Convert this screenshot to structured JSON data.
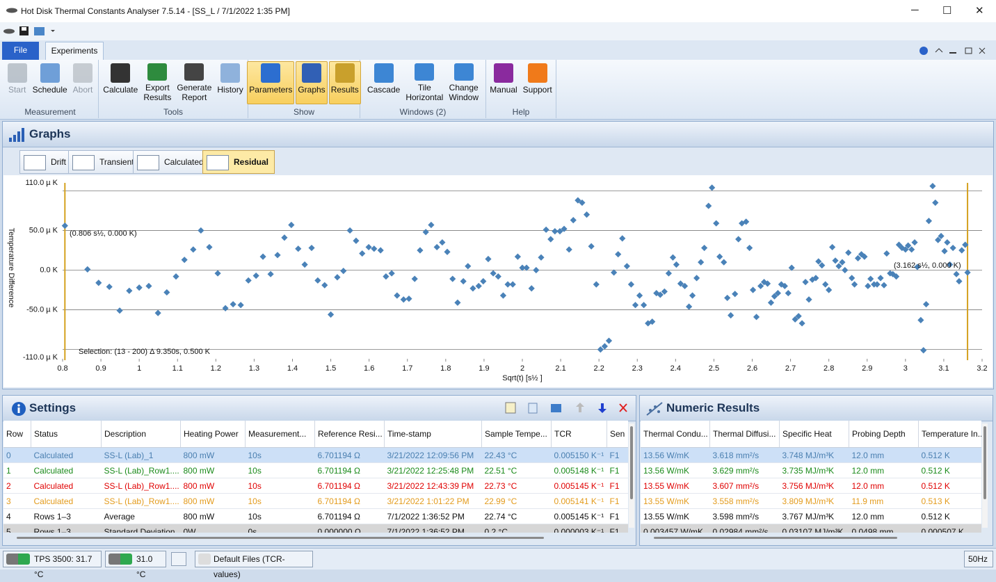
{
  "window": {
    "title": "Hot Disk Thermal Constants Analyser 7.5.14 - [SS_L  /  7/1/2022 1:35 PM]"
  },
  "ribbon": {
    "tabs": [
      "File",
      "Experiments"
    ],
    "groups": [
      {
        "label": "Measurement",
        "buttons": [
          {
            "label": "Start",
            "disabled": true
          },
          {
            "label": "Schedule"
          },
          {
            "label": "Abort",
            "disabled": true
          }
        ]
      },
      {
        "label": "Tools",
        "buttons": [
          {
            "label": "Calculate"
          },
          {
            "label": "Export Results"
          },
          {
            "label": "Generate Report"
          },
          {
            "label": "History"
          }
        ]
      },
      {
        "label": "Show",
        "buttons": [
          {
            "label": "Parameters",
            "active": true
          },
          {
            "label": "Graphs",
            "active": true
          },
          {
            "label": "Results",
            "active": true
          }
        ]
      },
      {
        "label": "Windows (2)",
        "buttons": [
          {
            "label": "Cascade"
          },
          {
            "label": "Tile Horizontal"
          },
          {
            "label": "Change Window"
          }
        ]
      },
      {
        "label": "Help",
        "buttons": [
          {
            "label": "Manual"
          },
          {
            "label": "Support"
          }
        ]
      }
    ]
  },
  "graphs": {
    "title": "Graphs",
    "tabs": [
      "Drift",
      "Transient",
      "Calculated",
      "Residual"
    ],
    "active": 3
  },
  "chart_data": {
    "type": "scatter",
    "xlabel": "Sqrt(t) [s½ ]",
    "ylabel": "Temperature Difference",
    "xlim": [
      0.8,
      3.2
    ],
    "xticks": [
      0.8,
      0.9,
      1,
      1.1,
      1.2,
      1.3,
      1.4,
      1.5,
      1.6,
      1.7,
      1.8,
      1.9,
      2,
      2.1,
      2.2,
      2.3,
      2.4,
      2.5,
      2.6,
      2.7,
      2.8,
      2.9,
      3,
      3.1,
      3.2
    ],
    "ylim": [
      -110,
      110
    ],
    "yticks": [
      {
        "value": 110,
        "label": "110.0 µ K"
      },
      {
        "value": 50,
        "label": "50.0 µ K"
      },
      {
        "value": 0,
        "label": "0.0 K"
      },
      {
        "value": -50,
        "label": "-50.0 µ K"
      },
      {
        "value": -110,
        "label": "-110.0 µ K"
      }
    ],
    "grid": true,
    "ygrid": [
      100,
      50,
      0,
      -50,
      -100
    ],
    "color": "#4a82b8",
    "cursors": [
      0.806,
      3.162
    ],
    "cursor_color": "#d4a11e",
    "annotations": [
      "(0.806 s½, 0.000 K)",
      "(3.162 s½, 0.000 K)",
      "Selection: (13 - 200) Δ 9.350s, 0.500 K"
    ],
    "x": [
      0.806,
      0.865,
      0.894,
      0.922,
      0.949,
      0.974,
      1.0,
      1.025,
      1.049,
      1.072,
      1.096,
      1.118,
      1.141,
      1.161,
      1.183,
      1.205,
      1.225,
      1.245,
      1.265,
      1.285,
      1.305,
      1.323,
      1.343,
      1.361,
      1.379,
      1.397,
      1.415,
      1.432,
      1.45,
      1.466,
      1.484,
      1.5,
      1.517,
      1.533,
      1.55,
      1.566,
      1.582,
      1.599,
      1.613,
      1.63,
      1.644,
      1.659,
      1.673,
      1.69,
      1.704,
      1.719,
      1.733,
      1.748,
      1.762,
      1.777,
      1.791,
      1.804,
      1.818,
      1.831,
      1.846,
      1.858,
      1.871,
      1.886,
      1.898,
      1.911,
      1.924,
      1.937,
      1.95,
      1.962,
      1.975,
      1.988,
      2.0,
      2.011,
      2.024,
      2.036,
      2.049,
      2.062,
      2.074,
      2.085,
      2.098,
      2.109,
      2.122,
      2.133,
      2.145,
      2.156,
      2.168,
      2.18,
      2.193,
      2.204,
      2.215,
      2.226,
      2.239,
      2.25,
      2.261,
      2.273,
      2.284,
      2.295,
      2.306,
      2.317,
      2.328,
      2.339,
      2.35,
      2.36,
      2.371,
      2.382,
      2.393,
      2.402,
      2.413,
      2.424,
      2.435,
      2.444,
      2.455,
      2.466,
      2.475,
      2.486,
      2.495,
      2.506,
      2.515,
      2.526,
      2.535,
      2.544,
      2.555,
      2.564,
      2.573,
      2.584,
      2.593,
      2.602,
      2.611,
      2.622,
      2.631,
      2.64,
      2.649,
      2.658,
      2.667,
      2.676,
      2.685,
      2.694,
      2.703,
      2.712,
      2.721,
      2.73,
      2.739,
      2.748,
      2.757,
      2.766,
      2.773,
      2.782,
      2.791,
      2.8,
      2.809,
      2.817,
      2.826,
      2.835,
      2.842,
      2.851,
      2.86,
      2.867,
      2.876,
      2.885,
      2.893,
      2.902,
      2.909,
      2.918,
      2.926,
      2.935,
      2.944,
      2.951,
      2.96,
      2.967,
      2.976,
      2.983,
      2.991,
      3.0,
      3.007,
      3.016,
      3.024,
      3.031,
      3.04,
      3.047,
      3.054,
      3.061,
      3.071,
      3.078,
      3.085,
      3.093,
      3.102,
      3.109,
      3.116,
      3.124,
      3.133,
      3.14,
      3.147,
      3.156,
      3.162
    ],
    "values": [
      56,
      1,
      -16,
      -21,
      -51,
      -26,
      -22,
      -20,
      -54,
      -28,
      -8,
      13,
      26,
      50,
      29,
      -4,
      -48,
      -43,
      -44,
      -13,
      -7,
      17,
      -5,
      19,
      41,
      57,
      27,
      7,
      28,
      -13,
      -19,
      -56,
      -9,
      -1,
      50,
      37,
      21,
      29,
      27,
      25,
      -8,
      -4,
      -32,
      -37,
      -36,
      -11,
      25,
      48,
      57,
      29,
      35,
      23,
      -11,
      -41,
      -14,
      5,
      -23,
      -20,
      -14,
      14,
      -4,
      -8,
      -32,
      -18,
      -18,
      17,
      3,
      3,
      -23,
      0,
      16,
      51,
      39,
      49,
      49,
      52,
      26,
      63,
      88,
      85,
      70,
      30,
      -18,
      -100,
      -96,
      -89,
      -3,
      20,
      40,
      5,
      -18,
      -44,
      -32,
      -44,
      -67,
      -65,
      -29,
      -31,
      -27,
      -4,
      16,
      7,
      -17,
      -20,
      -46,
      -32,
      -10,
      10,
      28,
      81,
      104,
      59,
      17,
      10,
      -35,
      -57,
      -30,
      39,
      59,
      61,
      28,
      -25,
      -59,
      -20,
      -15,
      -17,
      -41,
      -33,
      -29,
      -18,
      -20,
      -29,
      3,
      -62,
      -58,
      -67,
      -15,
      -37,
      -12,
      -10,
      11,
      6,
      -18,
      -25,
      29,
      12,
      5,
      10,
      0,
      22,
      -10,
      -18,
      15,
      20,
      17,
      -20,
      -11,
      -18,
      -18,
      -10,
      -19,
      21,
      -4,
      -5,
      -8,
      32,
      28,
      26,
      31,
      26,
      35,
      4,
      -63,
      -101,
      -43,
      62,
      106,
      85,
      38,
      43,
      24,
      35,
      7,
      28,
      -5,
      -14,
      25,
      32,
      -3
    ]
  },
  "settings": {
    "title": "Settings",
    "columns": [
      "Row",
      "Status",
      "Description",
      "Heating Power",
      "Measurement...",
      "Reference Resi...",
      "Time-stamp",
      "Sample Tempe...",
      "TCR",
      "Sen"
    ],
    "row_colors": [
      "#4a7fb0",
      "#1a8a1a",
      "#e00000",
      "#e39b1c",
      "#111111",
      "#111111"
    ],
    "rows": [
      [
        "0",
        "Calculated",
        "SS-L (Lab)_1",
        "800 mW",
        "10s",
        "6.701194 Ω",
        "3/21/2022 12:09:56 PM",
        "22.43 °C",
        "0.005150 K⁻¹",
        "F1"
      ],
      [
        "1",
        "Calculated",
        "SS-L (Lab)_Row1....",
        "800 mW",
        "10s",
        "6.701194 Ω",
        "3/21/2022 12:25:48 PM",
        "22.51 °C",
        "0.005148 K⁻¹",
        "F1"
      ],
      [
        "2",
        "Calculated",
        "SS-L (Lab)_Row1....",
        "800 mW",
        "10s",
        "6.701194 Ω",
        "3/21/2022 12:43:39 PM",
        "22.73 °C",
        "0.005145 K⁻¹",
        "F1"
      ],
      [
        "3",
        "Calculated",
        "SS-L (Lab)_Row1....",
        "800 mW",
        "10s",
        "6.701194 Ω",
        "3/21/2022 1:01:22 PM",
        "22.99 °C",
        "0.005141 K⁻¹",
        "F1"
      ],
      [
        "4",
        "Rows 1–3",
        "Average",
        "800 mW",
        "10s",
        "6.701194 Ω",
        "7/1/2022 1:36:52 PM",
        "22.74 °C",
        "0.005145 K⁻¹",
        "F1"
      ],
      [
        "5",
        "Rows 1–3",
        "Standard Deviation",
        "0W",
        "0s",
        "0.000000 Ω",
        "7/1/2022 1:36:52 PM",
        "0.2 °C",
        "0.000003 K⁻¹",
        "F1"
      ]
    ]
  },
  "numeric_results": {
    "title": "Numeric Results",
    "columns": [
      "Thermal Condu...",
      "Thermal Diffusi...",
      "Specific Heat",
      "Probing Depth",
      "Temperature In..."
    ],
    "row_colors": [
      "#4a7fb0",
      "#1a8a1a",
      "#e00000",
      "#e39b1c",
      "#111111",
      "#111111"
    ],
    "rows": [
      [
        "13.56 W/mK",
        "3.618 mm²/s",
        "3.748 MJ/m³K",
        "12.0 mm",
        "0.512 K"
      ],
      [
        "13.56 W/mK",
        "3.629 mm²/s",
        "3.735 MJ/m³K",
        "12.0 mm",
        "0.512 K"
      ],
      [
        "13.55 W/mK",
        "3.607 mm²/s",
        "3.756 MJ/m³K",
        "12.0 mm",
        "0.512 K"
      ],
      [
        "13.55 W/mK",
        "3.558 mm²/s",
        "3.809 MJ/m³K",
        "11.9 mm",
        "0.513 K"
      ],
      [
        "13.55 W/mK",
        "3.598 mm²/s",
        "3.767 MJ/m³K",
        "12.0 mm",
        "0.512 K"
      ],
      [
        "0.003457 W/mK",
        "0.02984 mm²/s",
        "0.03107 MJ/m³K",
        "0.0498 mm",
        "0.000507 K"
      ]
    ]
  },
  "status": {
    "items": [
      "TPS 3500: 31.7 °C",
      "31.0 °C",
      "Default Files (TCR-values)"
    ],
    "frequency": "50Hz"
  }
}
